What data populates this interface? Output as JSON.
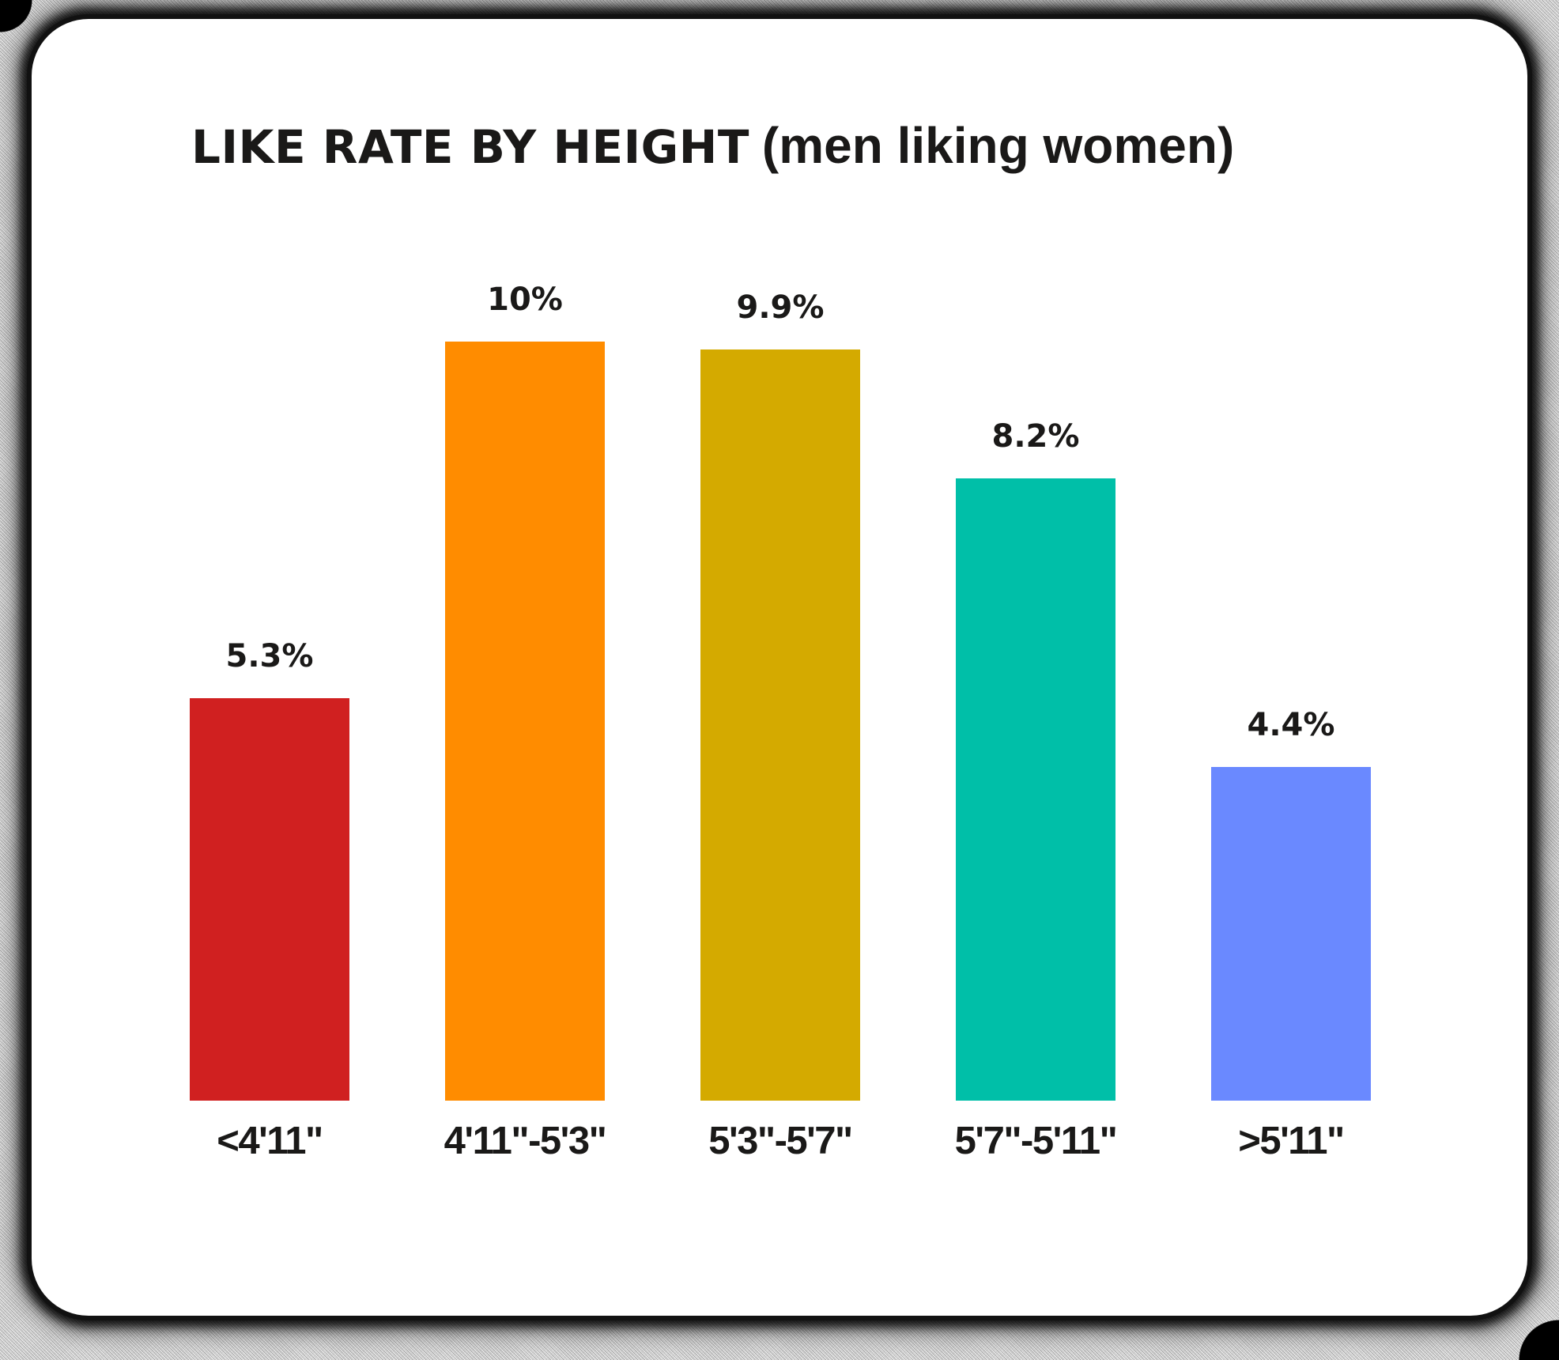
{
  "title": {
    "main": "LIKE RATE BY HEIGHT",
    "sub": "(men liking women)"
  },
  "text_color": "#1A1918",
  "bars": [
    {
      "category": "<4'11\"",
      "value_label": "5.3%",
      "color": "#D02020"
    },
    {
      "category": "4'11\"-5'3\"",
      "value_label": "10%",
      "color": "#FF8C00"
    },
    {
      "category": "5'3\"-5'7\"",
      "value_label": "9.9%",
      "color": "#D4AA00"
    },
    {
      "category": "5'7\"-5'11\"",
      "value_label": "8.2%",
      "color": "#00BFA8"
    },
    {
      "category": ">5'11\"",
      "value_label": "4.4%",
      "color": "#6A89FF"
    }
  ],
  "chart_data": {
    "type": "bar",
    "title": "LIKE RATE BY HEIGHT (men liking women)",
    "xlabel": "",
    "ylabel": "",
    "categories": [
      "<4'11\"",
      "4'11\"-5'3\"",
      "5'3\"-5'7\"",
      "5'7\"-5'11\"",
      ">5'11\""
    ],
    "values": [
      5.3,
      10,
      9.9,
      8.2,
      4.4
    ],
    "value_labels": [
      "5.3%",
      "10%",
      "9.9%",
      "8.2%",
      "4.4%"
    ],
    "colors": [
      "#D02020",
      "#FF8C00",
      "#D4AA00",
      "#00BFA8",
      "#6A89FF"
    ],
    "unit": "%",
    "ylim": [
      0,
      10
    ],
    "grid": false,
    "axes_visible": false,
    "legend": null
  }
}
